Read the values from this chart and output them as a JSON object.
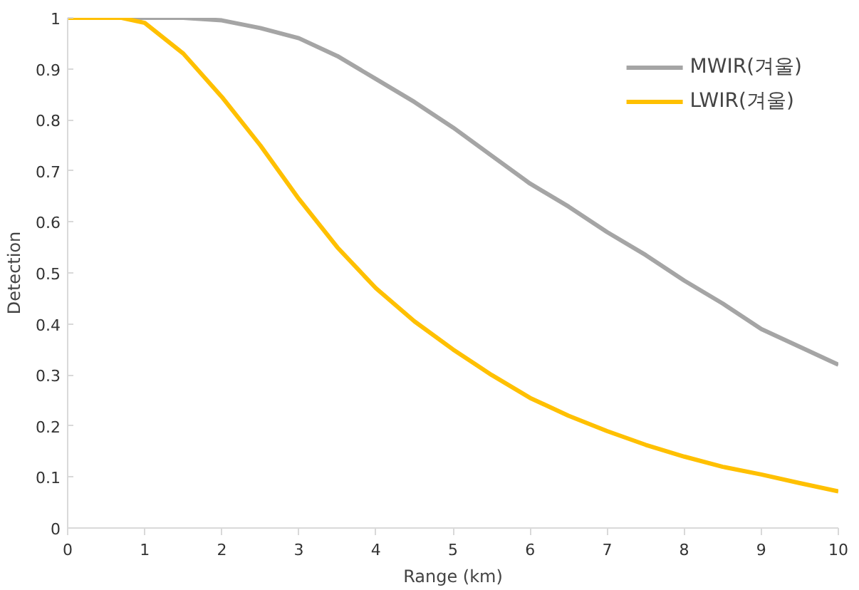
{
  "chart_data": {
    "type": "line",
    "xlabel": "Range (km)",
    "ylabel": "Detection",
    "xlim": [
      0,
      10
    ],
    "ylim": [
      0,
      1
    ],
    "xticks": [
      0,
      1,
      2,
      3,
      4,
      5,
      6,
      7,
      8,
      9,
      10
    ],
    "yticks": [
      0,
      0.1,
      0.2,
      0.3,
      0.4,
      0.5,
      0.6,
      0.7,
      0.8,
      0.9,
      1
    ],
    "grid": false,
    "legend": "top right",
    "marker": "none",
    "line_style": "solid",
    "series": [
      {
        "name": "MWIR(겨울)",
        "color": "#a5a5a5",
        "x": [
          0,
          1,
          1.5,
          2,
          2.5,
          3,
          3.5,
          4,
          4.5,
          5,
          5.5,
          6,
          6.5,
          7,
          7.5,
          8,
          8.5,
          9,
          9.5,
          10
        ],
        "values": [
          1,
          1,
          1,
          0.995,
          0.98,
          0.96,
          0.925,
          0.88,
          0.835,
          0.785,
          0.73,
          0.675,
          0.63,
          0.58,
          0.535,
          0.485,
          0.44,
          0.39,
          0.355,
          0.32
        ]
      },
      {
        "name": "LWIR(겨울)",
        "color": "#ffc000",
        "x": [
          0,
          0.5,
          0.7,
          1,
          1.5,
          2,
          2.5,
          3,
          3.5,
          4,
          4.5,
          5,
          5.5,
          6,
          6.5,
          7,
          7.5,
          8,
          8.5,
          9,
          9.5,
          10
        ],
        "values": [
          1,
          1,
          1,
          0.99,
          0.93,
          0.845,
          0.75,
          0.645,
          0.55,
          0.47,
          0.405,
          0.35,
          0.3,
          0.255,
          0.22,
          0.19,
          0.163,
          0.14,
          0.12,
          0.105,
          0.088,
          0.072
        ]
      }
    ]
  }
}
